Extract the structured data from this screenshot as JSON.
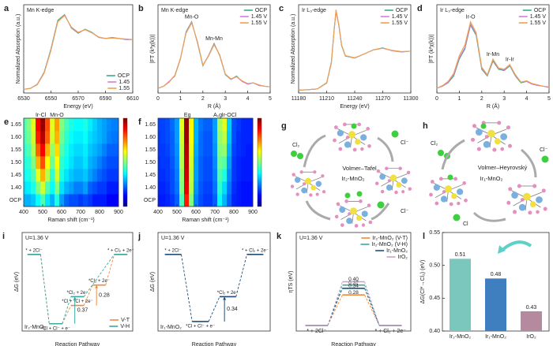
{
  "chart_data": [
    {
      "type": "line",
      "label": "a",
      "title": "Mn K-edge",
      "xlabel": "Energy (eV)",
      "ylabel": "Normalized Absorption (a.u.)",
      "x": [
        6530,
        6535,
        6540,
        6545,
        6550,
        6555,
        6560,
        6565,
        6570,
        6575,
        6580,
        6585,
        6590,
        6595,
        6600,
        6605,
        6610
      ],
      "series": [
        {
          "name": "OCP",
          "color": "#3aa88a",
          "values": [
            0.02,
            0.04,
            0.12,
            0.35,
            0.8,
            1.35,
            1.46,
            1.2,
            1.1,
            1.18,
            1.12,
            1.02,
            1.0,
            1.02,
            1.0,
            0.98,
            0.98
          ]
        },
        {
          "name": "1.45",
          "color": "#d27fd6",
          "values": [
            0.02,
            0.04,
            0.12,
            0.34,
            0.78,
            1.33,
            1.45,
            1.21,
            1.11,
            1.17,
            1.11,
            1.02,
            1.0,
            1.01,
            1.0,
            0.98,
            0.98
          ]
        },
        {
          "name": "1.55",
          "color": "#f0a04b",
          "values": [
            0.02,
            0.04,
            0.11,
            0.33,
            0.77,
            1.32,
            1.44,
            1.22,
            1.12,
            1.17,
            1.11,
            1.03,
            1.0,
            1.01,
            1.0,
            0.99,
            0.98
          ]
        }
      ],
      "xlim": [
        6530,
        6610
      ],
      "xticks": [
        6530,
        6550,
        6570,
        6590,
        6610
      ],
      "ylim": [
        -0.05,
        1.65
      ],
      "legend": "lower right"
    },
    {
      "type": "line",
      "label": "b",
      "title": "Mn K-edge",
      "xlabel": "R (Å)",
      "ylabel": "|FT (k³χ(k))|",
      "x": [
        0,
        0.25,
        0.5,
        0.75,
        1,
        1.25,
        1.5,
        1.75,
        2,
        2.25,
        2.5,
        2.75,
        3,
        3.25,
        3.5,
        3.75,
        4,
        4.25,
        4.5,
        4.75,
        5
      ],
      "series": [
        {
          "name": "OCP",
          "color": "#3aa88a",
          "values": [
            0.02,
            0.05,
            0.12,
            0.2,
            0.45,
            0.85,
            1.0,
            0.7,
            0.35,
            0.5,
            0.68,
            0.5,
            0.22,
            0.15,
            0.2,
            0.12,
            0.08,
            0.1,
            0.06,
            0.05,
            0.04
          ]
        },
        {
          "name": "1.45 V",
          "color": "#d27fd6",
          "values": [
            0.02,
            0.05,
            0.12,
            0.21,
            0.46,
            0.84,
            0.99,
            0.71,
            0.36,
            0.5,
            0.67,
            0.51,
            0.23,
            0.15,
            0.19,
            0.12,
            0.08,
            0.1,
            0.06,
            0.05,
            0.04
          ]
        },
        {
          "name": "1.55 V",
          "color": "#f0a04b",
          "values": [
            0.02,
            0.05,
            0.11,
            0.21,
            0.46,
            0.83,
            0.98,
            0.72,
            0.36,
            0.49,
            0.66,
            0.51,
            0.23,
            0.16,
            0.19,
            0.13,
            0.09,
            0.1,
            0.07,
            0.05,
            0.04
          ]
        }
      ],
      "xlim": [
        0,
        5
      ],
      "xticks": [
        0,
        1,
        2,
        3,
        4,
        5
      ],
      "ylim": [
        -0.05,
        1.25
      ],
      "legend": "upper right",
      "annotations": [
        {
          "text": "Mn-O",
          "x": 1.5
        },
        {
          "text": "Mn-Mn",
          "x": 2.5
        }
      ]
    },
    {
      "type": "line",
      "label": "c",
      "title": "Ir L₃-edge",
      "xlabel": "Energy (eV)",
      "ylabel": "Normalized Absorption (a.u.)",
      "x": [
        11180,
        11190,
        11200,
        11210,
        11215,
        11218,
        11220,
        11223,
        11226,
        11230,
        11240,
        11250,
        11260,
        11270,
        11280,
        11290,
        11300
      ],
      "series": [
        {
          "name": "OCP",
          "color": "#3aa88a",
          "values": [
            0.02,
            0.03,
            0.05,
            0.2,
            0.7,
            1.5,
            1.95,
            1.6,
            1.1,
            0.85,
            0.8,
            0.9,
            1.0,
            1.05,
            0.98,
            0.95,
            0.97
          ]
        },
        {
          "name": "1.45 V",
          "color": "#d27fd6",
          "values": [
            0.02,
            0.03,
            0.05,
            0.19,
            0.68,
            1.48,
            1.93,
            1.61,
            1.11,
            0.86,
            0.8,
            0.9,
            1.0,
            1.04,
            0.98,
            0.95,
            0.97
          ]
        },
        {
          "name": "1.55 V",
          "color": "#f0a04b",
          "values": [
            0.02,
            0.03,
            0.05,
            0.19,
            0.67,
            1.47,
            1.98,
            1.62,
            1.12,
            0.86,
            0.81,
            0.9,
            1.0,
            1.04,
            0.99,
            0.96,
            0.97
          ]
        }
      ],
      "xlim": [
        11180,
        11300
      ],
      "xticks": [
        11180,
        11210,
        11240,
        11270,
        11300
      ],
      "ylim": [
        -0.05,
        2.1
      ],
      "legend": "upper right"
    },
    {
      "type": "line",
      "label": "d",
      "title": "Ir L₃-edge",
      "xlabel": "R (Å)",
      "ylabel": "|FT (k²χ(k))|",
      "x": [
        0,
        0.25,
        0.5,
        0.75,
        1,
        1.25,
        1.5,
        1.75,
        2,
        2.25,
        2.5,
        2.75,
        3,
        3.25,
        3.5,
        3.75,
        4,
        4.25,
        4.5,
        4.75,
        5
      ],
      "series": [
        {
          "name": "OCP",
          "color": "#3aa88a",
          "values": [
            0.02,
            0.05,
            0.1,
            0.2,
            0.45,
            0.6,
            0.95,
            0.8,
            0.3,
            0.2,
            0.42,
            0.3,
            0.28,
            0.35,
            0.2,
            0.1,
            0.12,
            0.08,
            0.06,
            0.05,
            0.03
          ]
        },
        {
          "name": "1.45 V",
          "color": "#d27fd6",
          "values": [
            0.02,
            0.05,
            0.11,
            0.22,
            0.47,
            0.62,
            0.97,
            0.82,
            0.32,
            0.21,
            0.44,
            0.31,
            0.29,
            0.36,
            0.21,
            0.11,
            0.12,
            0.08,
            0.06,
            0.05,
            0.03
          ]
        },
        {
          "name": "1.55 V",
          "color": "#f0a04b",
          "values": [
            0.02,
            0.06,
            0.12,
            0.24,
            0.5,
            0.66,
            1.0,
            0.84,
            0.33,
            0.22,
            0.45,
            0.32,
            0.3,
            0.37,
            0.22,
            0.11,
            0.13,
            0.09,
            0.07,
            0.05,
            0.04
          ]
        }
      ],
      "xlim": [
        0,
        5
      ],
      "xticks": [
        0,
        1,
        2,
        3,
        4,
        5
      ],
      "ylim": [
        -0.05,
        1.25
      ],
      "legend": "upper right",
      "annotations": [
        {
          "text": "Ir-O",
          "x": 1.5
        },
        {
          "text": "Ir-Mn",
          "x": 2.5
        },
        {
          "text": "Ir-Ir",
          "x": 3.25
        }
      ]
    },
    {
      "type": "heatmap",
      "label": "e",
      "xlabel": "Raman shift (cm⁻¹)",
      "colormap": "jet",
      "zlim": [
        0,
        1
      ],
      "x": [
        400,
        425,
        450,
        475,
        500,
        525,
        550,
        575,
        600,
        625,
        650,
        675,
        700,
        725,
        750,
        775,
        800,
        825,
        850,
        875,
        900
      ],
      "categories": [
        "OCP",
        "1.40",
        "1.45",
        "1.50",
        "1.55",
        "1.60",
        "1.65"
      ],
      "values": [
        [
          0.3,
          0.3,
          0.32,
          0.38,
          0.45,
          0.35,
          0.3,
          0.4,
          0.28,
          0.22,
          0.2,
          0.2,
          0.18,
          0.2,
          0.18,
          0.15,
          0.15,
          0.15,
          0.12,
          0.12,
          0.12
        ],
        [
          0.35,
          0.36,
          0.4,
          0.5,
          0.58,
          0.45,
          0.38,
          0.5,
          0.35,
          0.3,
          0.28,
          0.25,
          0.25,
          0.28,
          0.22,
          0.2,
          0.18,
          0.18,
          0.15,
          0.15,
          0.15
        ],
        [
          0.38,
          0.4,
          0.45,
          0.6,
          0.7,
          0.55,
          0.42,
          0.58,
          0.4,
          0.35,
          0.32,
          0.3,
          0.3,
          0.32,
          0.28,
          0.25,
          0.22,
          0.2,
          0.18,
          0.18,
          0.18
        ],
        [
          0.4,
          0.42,
          0.5,
          0.7,
          0.8,
          0.62,
          0.48,
          0.62,
          0.42,
          0.38,
          0.35,
          0.32,
          0.32,
          0.35,
          0.3,
          0.28,
          0.25,
          0.22,
          0.2,
          0.2,
          0.2
        ],
        [
          0.42,
          0.45,
          0.55,
          0.78,
          0.88,
          0.7,
          0.52,
          0.66,
          0.45,
          0.4,
          0.36,
          0.34,
          0.34,
          0.36,
          0.32,
          0.3,
          0.28,
          0.25,
          0.22,
          0.22,
          0.22
        ],
        [
          0.44,
          0.48,
          0.58,
          0.85,
          0.95,
          0.78,
          0.58,
          0.7,
          0.48,
          0.42,
          0.38,
          0.36,
          0.36,
          0.38,
          0.34,
          0.32,
          0.3,
          0.28,
          0.25,
          0.24,
          0.24
        ],
        [
          0.45,
          0.5,
          0.6,
          0.88,
          0.98,
          0.8,
          0.6,
          0.72,
          0.5,
          0.44,
          0.4,
          0.38,
          0.38,
          0.4,
          0.36,
          0.33,
          0.3,
          0.28,
          0.26,
          0.25,
          0.25
        ]
      ],
      "xlim": [
        400,
        900
      ],
      "xticks": [
        400,
        500,
        600,
        700,
        800,
        900
      ],
      "annotations": [
        {
          "text": "Ir-Cl",
          "x": 490
        },
        {
          "text": "Mn-O",
          "x": 575
        }
      ]
    },
    {
      "type": "heatmap",
      "label": "f",
      "xlabel": "Raman shift (cm⁻¹)",
      "colormap": "jet",
      "zlim": [
        0,
        1
      ],
      "x": [
        400,
        425,
        450,
        475,
        500,
        525,
        550,
        575,
        600,
        625,
        650,
        675,
        700,
        725,
        750,
        775,
        800,
        825,
        850,
        875,
        900
      ],
      "categories": [
        "OCP",
        "1.40",
        "1.45",
        "1.50",
        "1.55",
        "1.60",
        "1.65"
      ],
      "values": [
        [
          0.15,
          0.15,
          0.16,
          0.18,
          0.22,
          0.45,
          0.85,
          0.5,
          0.25,
          0.2,
          0.18,
          0.18,
          0.22,
          0.38,
          0.3,
          0.22,
          0.16,
          0.15,
          0.14,
          0.14,
          0.14
        ],
        [
          0.16,
          0.16,
          0.17,
          0.2,
          0.24,
          0.5,
          0.9,
          0.55,
          0.27,
          0.21,
          0.19,
          0.19,
          0.24,
          0.42,
          0.34,
          0.24,
          0.17,
          0.15,
          0.14,
          0.14,
          0.14
        ],
        [
          0.17,
          0.17,
          0.18,
          0.2,
          0.25,
          0.52,
          0.92,
          0.56,
          0.28,
          0.22,
          0.2,
          0.2,
          0.25,
          0.45,
          0.4,
          0.26,
          0.18,
          0.16,
          0.15,
          0.15,
          0.15
        ],
        [
          0.17,
          0.18,
          0.18,
          0.21,
          0.26,
          0.55,
          0.94,
          0.58,
          0.28,
          0.22,
          0.2,
          0.2,
          0.26,
          0.48,
          0.46,
          0.28,
          0.18,
          0.16,
          0.15,
          0.15,
          0.15
        ],
        [
          0.18,
          0.18,
          0.19,
          0.22,
          0.27,
          0.56,
          0.95,
          0.6,
          0.29,
          0.23,
          0.21,
          0.21,
          0.27,
          0.5,
          0.52,
          0.3,
          0.19,
          0.17,
          0.16,
          0.15,
          0.15
        ],
        [
          0.18,
          0.19,
          0.2,
          0.22,
          0.28,
          0.58,
          0.97,
          0.62,
          0.3,
          0.23,
          0.21,
          0.21,
          0.28,
          0.52,
          0.56,
          0.32,
          0.2,
          0.17,
          0.16,
          0.16,
          0.16
        ],
        [
          0.19,
          0.19,
          0.2,
          0.23,
          0.28,
          0.6,
          0.98,
          0.63,
          0.3,
          0.24,
          0.22,
          0.22,
          0.28,
          0.54,
          0.6,
          0.33,
          0.2,
          0.18,
          0.16,
          0.16,
          0.16
        ]
      ],
      "xlim": [
        400,
        900
      ],
      "xticks": [
        400,
        500,
        600,
        700,
        800,
        900
      ],
      "annotations": [
        {
          "text": "Eg",
          "x": 555
        },
        {
          "text": "A₁g",
          "x": 715
        },
        {
          "text": "Ir-OCl",
          "x": 775
        }
      ]
    },
    {
      "type": "energy",
      "label": "i",
      "title": "U=1.36 V",
      "catalyst": "Ir₂-MnO₂",
      "xlabel": "Reaction Pathway",
      "ylabel": "ΔG (eV)",
      "ylim": [
        -1.05,
        0.3
      ],
      "legend": "lower right",
      "series": [
        {
          "name": "V-T",
          "color": "#f08a3c",
          "x": [
            0,
            1,
            2,
            3,
            4
          ],
          "values": [
            0,
            -0.95,
            -0.7,
            -0.42,
            0
          ],
          "labels": [
            "* + 2Cl⁻",
            "*Cl + Cl⁻ + e⁻",
            "*Cl + *Cl + 2e⁻",
            "*Cl₂ + 2e⁻",
            "* + Cl₂ + 2e⁻"
          ],
          "barrier": 0.28
        },
        {
          "name": "V-H",
          "color": "#3aa8a0",
          "x": [
            0,
            1,
            2,
            4
          ],
          "values": [
            0,
            -0.95,
            -0.58,
            0
          ],
          "labels": [
            null,
            null,
            "*Cl₂ + 2e⁻",
            null
          ],
          "barrier": 0.37
        }
      ]
    },
    {
      "type": "energy",
      "label": "j",
      "title": "U=1.36 V",
      "catalyst": "Ir₁-MnO₂",
      "xlabel": "Reaction Pathway",
      "ylabel": "ΔG (eV)",
      "ylim": [
        -1.05,
        0.3
      ],
      "series": [
        {
          "color": "#1f4e79",
          "x": [
            0,
            1,
            2,
            3
          ],
          "values": [
            0,
            -0.92,
            -0.58,
            0
          ],
          "labels": [
            "* + 2Cl⁻",
            "*Cl + Cl⁻ + e⁻",
            "*Cl₂ + 2e⁻",
            "* + Cl₂ + 2e⁻"
          ],
          "barrier": 0.34
        }
      ]
    },
    {
      "type": "energy",
      "label": "k",
      "title": "U=1.36 V",
      "xlabel": "Reaction Pathway",
      "ylabel": "ηTS (eV)",
      "ylim": [
        -0.05,
        0.85
      ],
      "legend": "upper right",
      "categories": [
        "* + 2Cl⁻",
        null,
        "* + Cl₂ + 2e⁻"
      ],
      "series": [
        {
          "name": "Ir₂-MnO₂ (V-T)",
          "color": "#f08a3c",
          "values": [
            0,
            0.28,
            0
          ],
          "value_labels": [
            null,
            "0.28",
            null
          ]
        },
        {
          "name": "Ir₂-MnO₂ (V-H)",
          "color": "#3aa8a0",
          "values": [
            0,
            0.37,
            0
          ],
          "value_labels": [
            null,
            "0.37",
            null
          ]
        },
        {
          "name": "Ir₁-MnO₂",
          "color": "#1f4e79",
          "values": [
            0,
            0.34,
            0
          ],
          "value_labels": [
            null,
            "0.34",
            null
          ]
        },
        {
          "name": "IrO₂",
          "color": "#c9a0c8",
          "values": [
            0,
            0.4,
            0
          ],
          "value_labels": [
            null,
            "0.40",
            null
          ]
        }
      ]
    },
    {
      "type": "bar",
      "label": "l",
      "ylabel": "ΔG(Cl*→Cl₂) (eV)",
      "categories": [
        "Ir₂-MnO₂",
        "Ir₁-MnO₂",
        "IrO₂"
      ],
      "values": [
        0.51,
        0.48,
        0.43
      ],
      "colors": [
        "#7cc7bd",
        "#3f7fbf",
        "#b58a9e"
      ],
      "ylim": [
        0.4,
        0.55
      ],
      "yticks": [
        {
          "value": 0.4,
          "label": "0.40"
        },
        {
          "value": 0.45,
          "label": "0.45"
        },
        {
          "value": 0.5,
          "label": "0.50"
        },
        {
          "value": 0.55,
          "label": "0.55"
        }
      ]
    }
  ],
  "diagrams": {
    "g": {
      "label": "g",
      "title": "Volmer–Tafel",
      "catalyst": "Ir₂-MnO₂",
      "species": [
        "Cl₂",
        "Cl⁻",
        "Cl⁻"
      ]
    },
    "h": {
      "label": "h",
      "title": "Volmer–Heyrovský",
      "catalyst": "Ir₁-MnO₂",
      "species": [
        "Cl₂",
        "Cl⁻",
        "Cl"
      ]
    }
  }
}
